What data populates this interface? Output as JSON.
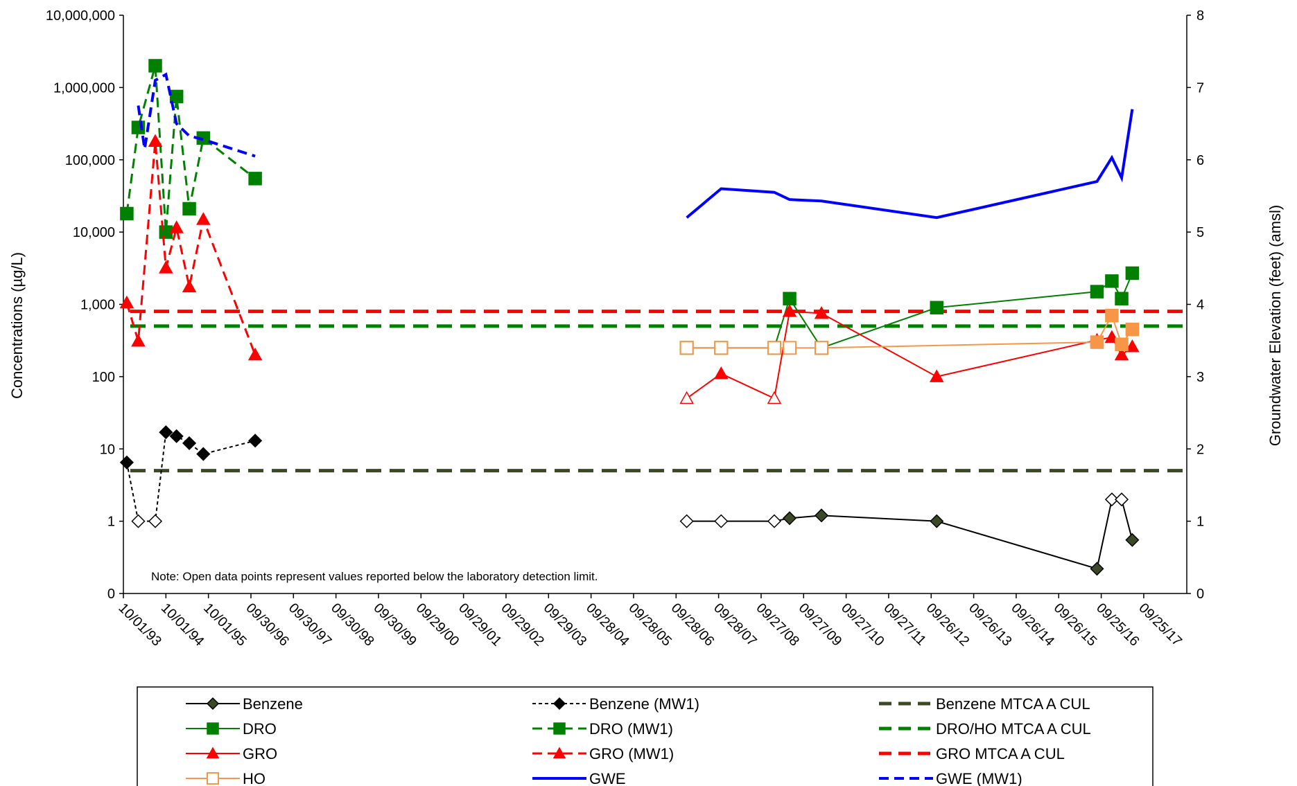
{
  "chart_data": {
    "type": "line",
    "ylabel": "Concentrations (µg/L)",
    "y2label": "Groundwater Elevation (feet) (amsl)",
    "y_scale": "log",
    "y_ticks": [
      "0",
      "1",
      "10",
      "100",
      "1,000",
      "10,000",
      "100,000",
      "1,000,000",
      "10,000,000"
    ],
    "y2_ticks": [
      "0",
      "1",
      "2",
      "3",
      "4",
      "5",
      "6",
      "7",
      "8"
    ],
    "y2lim": [
      0,
      8
    ],
    "x_ticks": [
      "10/01/93",
      "10/01/94",
      "10/01/95",
      "09/30/96",
      "09/30/97",
      "09/30/98",
      "09/30/99",
      "09/29/00",
      "09/29/01",
      "09/29/02",
      "09/29/03",
      "09/28/04",
      "09/28/05",
      "09/28/06",
      "09/28/07",
      "09/27/08",
      "09/27/09",
      "09/27/10",
      "09/27/11",
      "09/26/12",
      "09/26/13",
      "09/26/14",
      "09/26/15",
      "09/25/16",
      "09/25/17"
    ],
    "note": "Note: Open data points represent values reported below the laboratory detection limit.",
    "legend_position": "bottom",
    "series": [
      {
        "name": "Benzene",
        "axis": "left",
        "style": "solid",
        "marker": "diamond",
        "color": "#000000",
        "fill": "#3b4a24",
        "x": [
          13.25,
          14.06,
          15.31,
          15.67,
          16.42,
          19.13,
          22.9,
          23.25,
          23.48,
          23.73
        ],
        "y": [
          1,
          1,
          1,
          1.1,
          1.2,
          1,
          0.22,
          2,
          2,
          0.55
        ],
        "open": [
          true,
          true,
          true,
          false,
          false,
          false,
          false,
          true,
          true,
          false
        ]
      },
      {
        "name": "Benzene (MW1)",
        "axis": "left",
        "style": "dashed-thin",
        "marker": "diamond",
        "color": "#000000",
        "fill": "#000000",
        "x": [
          0.08,
          0.35,
          0.75,
          1.0,
          1.25,
          1.55,
          1.88,
          3.1
        ],
        "y": [
          6.5,
          1,
          1,
          17,
          15,
          12,
          8.5,
          13
        ],
        "open": [
          false,
          true,
          true,
          false,
          false,
          false,
          false,
          false
        ]
      },
      {
        "name": "DRO",
        "axis": "left",
        "style": "solid",
        "marker": "square",
        "color": "#008000",
        "fill": "#008000",
        "x": [
          13.25,
          14.06,
          15.31,
          15.67,
          16.42,
          19.13,
          22.9,
          23.25,
          23.48,
          23.73
        ],
        "y": [
          250,
          250,
          250,
          1200,
          250,
          900,
          1500,
          2100,
          1200,
          2700
        ],
        "open": [
          true,
          true,
          true,
          false,
          true,
          false,
          false,
          false,
          false,
          false
        ]
      },
      {
        "name": "DRO (MW1)",
        "axis": "left",
        "style": "dashed",
        "marker": "square",
        "color": "#008000",
        "fill": "#008000",
        "x": [
          0.08,
          0.35,
          0.75,
          1.0,
          1.25,
          1.55,
          1.88,
          3.1
        ],
        "y": [
          18000,
          280000,
          2000000,
          10000,
          750000,
          21000,
          200000,
          55000
        ],
        "open": [
          false,
          false,
          false,
          false,
          false,
          false,
          false,
          false
        ]
      },
      {
        "name": "GRO",
        "axis": "left",
        "style": "solid",
        "marker": "triangle",
        "color": "#ff0000",
        "fill": "#ff0000",
        "x": [
          13.25,
          14.06,
          15.31,
          15.67,
          16.42,
          19.13,
          22.9,
          23.25,
          23.48,
          23.73
        ],
        "y": [
          50,
          110,
          50,
          800,
          750,
          100,
          320,
          350,
          200,
          260
        ],
        "open": [
          true,
          false,
          true,
          false,
          false,
          false,
          false,
          false,
          false,
          false
        ]
      },
      {
        "name": "GRO (MW1)",
        "axis": "left",
        "style": "dashed",
        "marker": "triangle",
        "color": "#ff0000",
        "fill": "#ff0000",
        "x": [
          0.08,
          0.35,
          0.75,
          1.0,
          1.25,
          1.55,
          1.88,
          3.1
        ],
        "y": [
          1050,
          310,
          180000,
          3200,
          11500,
          1750,
          15000,
          200
        ],
        "open": [
          false,
          false,
          false,
          false,
          false,
          false,
          false,
          false
        ]
      },
      {
        "name": "HO",
        "axis": "left",
        "style": "solid",
        "marker": "square",
        "color": "#f79646",
        "fill": "#f79646",
        "x": [
          13.25,
          14.06,
          15.31,
          15.67,
          16.42,
          22.9,
          23.25,
          23.48,
          23.73
        ],
        "y": [
          250,
          250,
          250,
          250,
          250,
          300,
          700,
          280,
          450
        ],
        "open": [
          true,
          true,
          true,
          true,
          true,
          false,
          false,
          false,
          false
        ]
      },
      {
        "name": "GWE",
        "axis": "right",
        "style": "solid",
        "marker": "none",
        "color": "#0000ff",
        "x": [
          13.25,
          14.06,
          15.31,
          15.67,
          16.42,
          19.13,
          22.9,
          23.25,
          23.48,
          23.73
        ],
        "y": [
          5.2,
          5.6,
          5.55,
          5.45,
          5.43,
          5.2,
          5.7,
          6.03,
          5.75,
          6.7
        ]
      },
      {
        "name": "GWE (MW1)",
        "axis": "right",
        "style": "dashed",
        "marker": "none",
        "color": "#0000ff",
        "x": [
          0.35,
          0.5,
          0.75,
          1.0,
          1.25,
          1.55,
          1.88,
          3.1
        ],
        "y": [
          6.75,
          6.15,
          7.1,
          7.18,
          6.5,
          6.33,
          6.28,
          6.05
        ]
      },
      {
        "name": "Benzene MTCA A CUL",
        "axis": "left",
        "style": "threshold",
        "marker": "none",
        "color": "#3b4a24",
        "y": [
          5
        ]
      },
      {
        "name": "DRO/HO MTCA A CUL",
        "axis": "left",
        "style": "threshold",
        "marker": "none",
        "color": "#008000",
        "y": [
          500
        ]
      },
      {
        "name": "GRO MTCA A CUL",
        "axis": "left",
        "style": "threshold",
        "marker": "none",
        "color": "#ff0000",
        "y": [
          800
        ]
      }
    ],
    "legend": [
      "Benzene",
      "Benzene (MW1)",
      "Benzene MTCA A CUL",
      "DRO",
      "DRO (MW1)",
      "DRO/HO MTCA A CUL",
      "GRO",
      "GRO (MW1)",
      "GRO MTCA A CUL",
      "HO",
      "GWE",
      "GWE (MW1)"
    ]
  }
}
